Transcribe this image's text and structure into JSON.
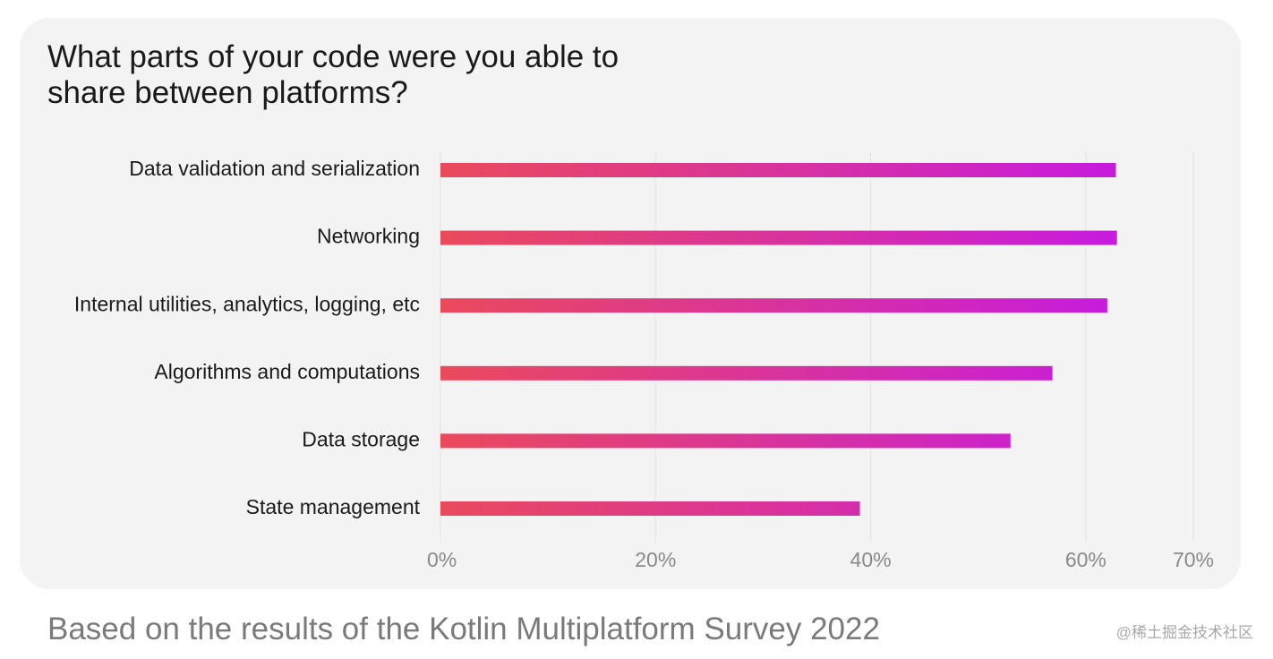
{
  "chart_data": {
    "type": "bar",
    "orientation": "horizontal",
    "title": "What parts of your code were you able to share between platforms?",
    "categories": [
      "Data validation and serialization",
      "Networking",
      "Internal utilities, analytics, logging, etc",
      "Algorithms and computations",
      "Data storage",
      "State management"
    ],
    "values": [
      62.8,
      62.9,
      62.0,
      56.9,
      53.0,
      39.0
    ],
    "xlim": [
      0,
      70
    ],
    "xticks": [
      0,
      20,
      40,
      60,
      70
    ],
    "xtick_labels": [
      "0%",
      "20%",
      "40%",
      "60%",
      "70%"
    ],
    "grid": true,
    "bar_gradient": [
      "#ea4a5c",
      "#c71bdf"
    ],
    "xlabel": "",
    "ylabel": ""
  },
  "footer": "Based on the results of the Kotlin Multiplatform Survey 2022",
  "watermark": "@稀土掘金技术社区",
  "colors": {
    "card_background": "#f3f3f3",
    "gridline": "#e2e2e2",
    "title_text": "#1a1a1a",
    "tick_text": "#8a8a8a"
  }
}
